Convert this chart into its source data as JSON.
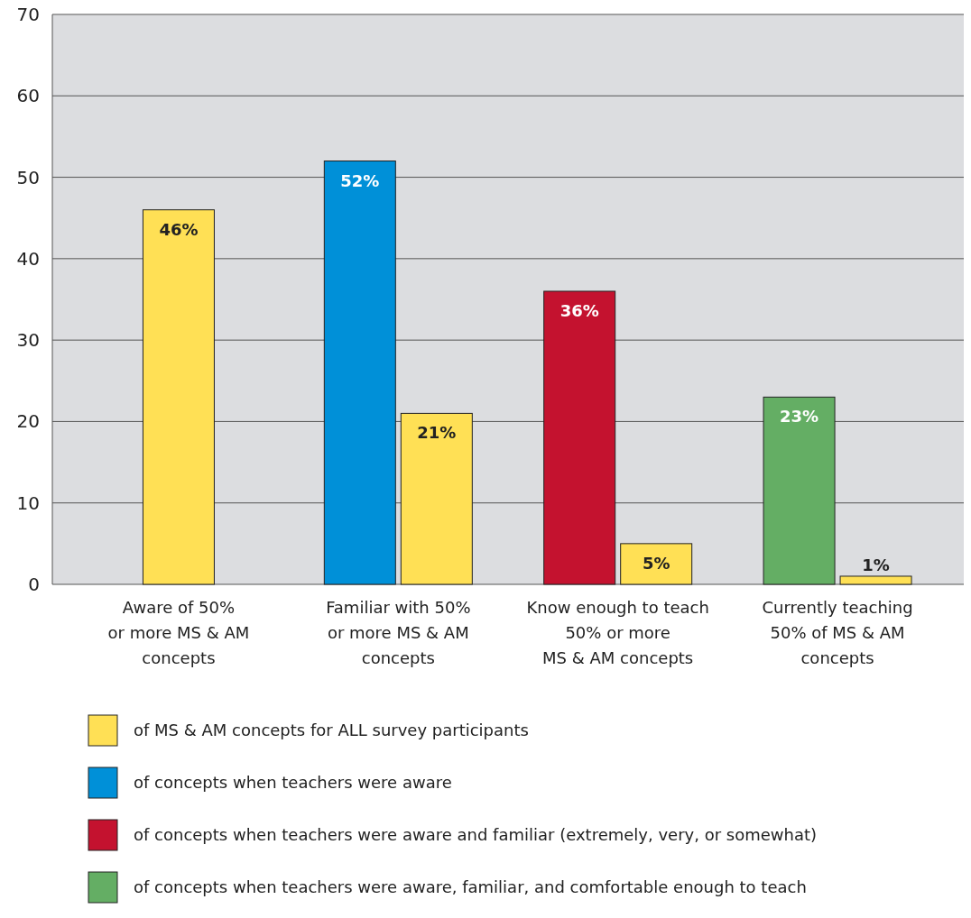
{
  "chart_data": {
    "type": "bar",
    "categories": [
      "Aware of 50%\nor more MS & AM\nconcepts",
      "Familiar with 50%\nor more MS & AM\nconcepts",
      "Know enough to teach\n50% or more\nMS & AM concepts",
      "Currently teaching\n50% of MS & AM\nconcepts"
    ],
    "series": [
      {
        "name": "of MS & AM concepts for ALL survey participants",
        "color": "#ffe055",
        "values": [
          46,
          21,
          5,
          1
        ],
        "value_labels": [
          "46%",
          "21%",
          "5%",
          "1%"
        ]
      },
      {
        "name": "of concepts when teachers were aware",
        "color": "#0090d8",
        "values": [
          null,
          52,
          null,
          null
        ],
        "value_labels": [
          null,
          "52%",
          null,
          null
        ]
      },
      {
        "name": "of concepts when teachers were aware and familiar (extremely, very, or somewhat)",
        "color": "#c4122f",
        "values": [
          null,
          null,
          36,
          null
        ],
        "value_labels": [
          null,
          null,
          "36%",
          null
        ]
      },
      {
        "name": "of concepts when teachers were aware, familiar, and comfortable enough to teach",
        "color": "#64ae64",
        "values": [
          null,
          null,
          null,
          23
        ],
        "value_labels": [
          null,
          null,
          null,
          "23%"
        ]
      }
    ],
    "ylim": [
      0,
      70
    ],
    "yticks": [
      0,
      10,
      20,
      30,
      40,
      50,
      60,
      70
    ],
    "grid": "y",
    "legend": "bottom"
  }
}
